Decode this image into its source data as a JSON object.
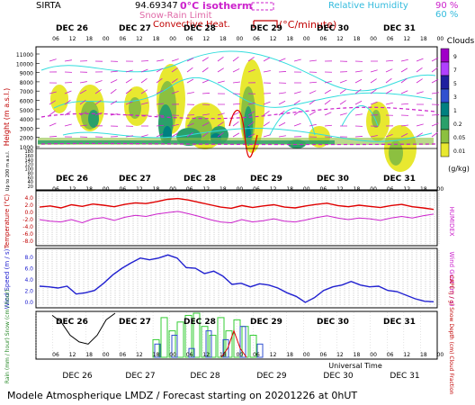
{
  "header": {
    "site": "SIRTA",
    "coord": "94.69347",
    "legend_isotherm": "0°C isotherm",
    "legend_snowrain": "Snow-Rain Limit",
    "legend_convective": "Convective Heat.",
    "legend_convective_unit": "(°C/minute)",
    "legend_rh_label": "Relative Humidity",
    "legend_rh_90": "90 %",
    "legend_rh_60": "60 %"
  },
  "footer": {
    "title": "Modele Atmospherique LMDZ / Forecast starting on 20201226 at 0hUT",
    "universal_time": "Universal Time"
  },
  "colors": {
    "red": "#e00000",
    "magenta": "#cc22cc",
    "blue": "#2020d0",
    "cyan": "#33dddd",
    "black": "#000000"
  },
  "icons": [
    "wind-arrows-icon"
  ],
  "chart_data": [
    {
      "type": "heatmap",
      "panel": "clouds",
      "days": [
        "DEC 26",
        "DEC 27",
        "DEC 28",
        "DEC 29",
        "DEC 30",
        "DEC 31"
      ],
      "hour_ticks": [
        "06",
        "12",
        "18",
        "00"
      ],
      "ylabel": "Height (m a.s.l.)",
      "ylabel_low": "Up to 200 m a.s.l.",
      "yticks_upper": [
        "11000",
        "10000",
        "9000",
        "8000",
        "7000",
        "6000",
        "5000",
        "4000",
        "3000",
        "2000",
        "1000"
      ],
      "yticks_lower": [
        "180",
        "160",
        "140",
        "120",
        "100",
        "80",
        "60",
        "40",
        "20"
      ],
      "colorbar_title": "Clouds",
      "colorbar_unit": "(g/kg)",
      "colorbar_ticks": [
        "9",
        "7",
        "5",
        "3",
        "1",
        "0.2",
        "0.05",
        "0.01"
      ],
      "colorbar_colors": [
        "#a000c8",
        "#b040ff",
        "#2020a0",
        "#3050d0",
        "#008080",
        "#2aa06a",
        "#8cc040",
        "#e8e830"
      ]
    },
    {
      "type": "line",
      "panel": "temperature",
      "ylabel_left": "Temperature (°C)",
      "ylabel_right": "HUMIDEX",
      "yticks": [
        "4.0",
        "2.0",
        "0.0",
        "-2.0",
        "-4.0",
        "-6.0",
        "-8.0"
      ],
      "ylim": [
        -8,
        4
      ],
      "series": [
        {
          "name": "Temperature",
          "values": [
            1.2,
            1.5,
            1.0,
            1.8,
            1.4,
            2.0,
            1.7,
            1.3,
            1.9,
            2.3,
            2.1,
            2.6,
            3.2,
            3.4,
            3.0,
            2.4,
            1.8,
            1.2,
            0.9,
            1.6,
            1.1,
            1.5,
            1.8,
            1.2,
            1.0,
            1.5,
            1.9,
            2.2,
            1.6,
            1.3,
            1.7,
            1.4,
            1.1,
            1.6,
            1.9,
            1.3,
            1.0,
            0.6
          ]
        },
        {
          "name": "HUMIDEX",
          "values": [
            -2.0,
            -2.4,
            -2.6,
            -2.0,
            -2.8,
            -1.8,
            -1.5,
            -2.2,
            -1.4,
            -0.9,
            -1.2,
            -0.6,
            -0.2,
            0.1,
            -0.5,
            -1.2,
            -2.0,
            -2.6,
            -2.8,
            -2.0,
            -2.6,
            -2.3,
            -1.8,
            -2.4,
            -2.6,
            -2.1,
            -1.5,
            -1.0,
            -1.6,
            -2.0,
            -1.6,
            -1.8,
            -2.2,
            -1.6,
            -1.2,
            -1.6,
            -1.0,
            -0.6
          ]
        }
      ]
    },
    {
      "type": "line",
      "panel": "wind",
      "ylabel_left": "Wind Speed (m / s)",
      "ylabel_right": "Wind Gust (m / s)",
      "yticks": [
        "8.0",
        "6.0",
        "4.0",
        "2.0",
        "0.0"
      ],
      "ylim": [
        0,
        9
      ],
      "series": [
        {
          "name": "Wind Speed",
          "values": [
            3.3,
            3.2,
            3.0,
            3.3,
            2.0,
            2.2,
            2.6,
            3.8,
            5.2,
            6.3,
            7.2,
            8.0,
            7.7,
            8.0,
            8.5,
            8.0,
            6.4,
            6.3,
            5.4,
            5.8,
            5.0,
            3.6,
            3.8,
            3.2,
            3.7,
            3.5,
            3.0,
            2.2,
            1.6,
            0.6,
            1.4,
            2.6,
            3.2,
            3.5,
            4.1,
            3.5,
            3.2,
            3.3,
            2.6,
            2.4,
            1.8,
            1.2,
            0.8,
            0.7
          ]
        }
      ]
    },
    {
      "type": "bar",
      "panel": "precip",
      "ylabel_left": "Rain (mm / hour) Snow (cm / hour)",
      "ylabel_right": "CAPE (J / g) Snow Depth (cm) Cloud Fraction",
      "series": [
        {
          "name": "Cloud Fraction",
          "values": [
            0.95,
            0.8,
            0.5,
            0.35,
            0.3,
            0.5,
            0.85,
            1.0
          ]
        },
        {
          "name": "Rain",
          "values": [
            0.4,
            0.9,
            0.6,
            0.8,
            0.95,
            1.0,
            0.7,
            0.5,
            0.9,
            0.6,
            0.85,
            0.7,
            0.5
          ]
        },
        {
          "name": "Snow",
          "values": [
            0.3,
            0.5,
            0.2,
            0.6,
            0.4,
            0.7,
            0.3
          ]
        },
        {
          "name": "CAPE",
          "values": [
            0.0,
            0.2,
            0.6,
            0.2,
            0.0
          ]
        }
      ]
    }
  ]
}
